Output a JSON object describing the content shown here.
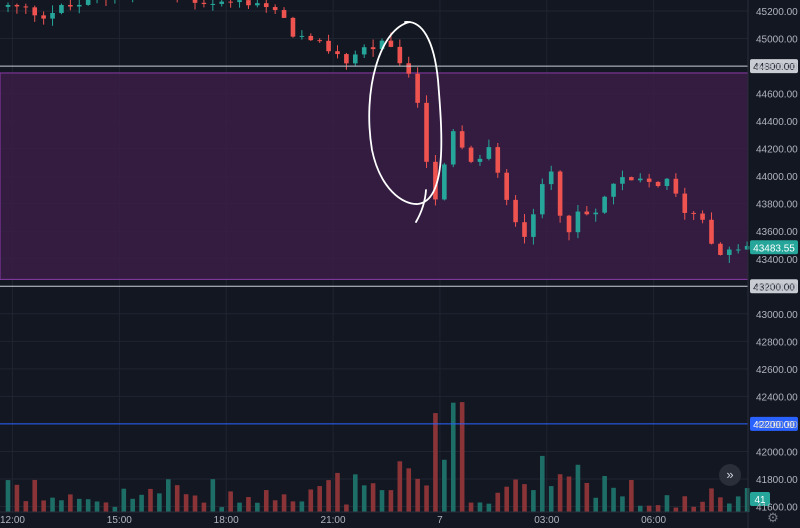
{
  "colors": {
    "background": "#131722",
    "grid": "#1f2431",
    "up": "#26a69a",
    "down": "#ef5350",
    "volume_up": "#1e6e68",
    "volume_down": "#8a3438",
    "zone_fill": "#3a1d45",
    "zone_border": "#8a3aa8",
    "level_line": "#c9ccd3",
    "blue_line": "#2962ff",
    "axis_text": "#b2b5be",
    "annotation": "#ffffff"
  },
  "ui": {
    "expand_icon": "chevrons-right-icon",
    "settings_icon": "gear-icon"
  },
  "chart_data": {
    "type": "candlestick",
    "title": "",
    "ylim": [
      41560,
      45280
    ],
    "y_ticks": [
      "45200.00",
      "45000.00",
      "44800.00",
      "44600.00",
      "44400.00",
      "44200.00",
      "44000.00",
      "43800.00",
      "43600.00",
      "43400.00",
      "43200.00",
      "43000.00",
      "42800.00",
      "42600.00",
      "42400.00",
      "42200.00",
      "42000.00",
      "41800.00",
      "41600.00"
    ],
    "x_tick_labels": [
      "12:00",
      "15:00",
      "18:00",
      "21:00",
      "7",
      "03:00",
      "06:00"
    ],
    "x_tick_hours": [
      0,
      3,
      6,
      9,
      12,
      15,
      18
    ],
    "x_range_hours": [
      -0.35,
      20.65
    ],
    "grid": true,
    "horizontal_levels": [
      {
        "label": "44800.00",
        "value": 44800,
        "style": "white"
      },
      {
        "label": "43200.00",
        "value": 43200,
        "style": "white"
      },
      {
        "label": "42200.00",
        "value": 42200,
        "style": "blue"
      }
    ],
    "zone": {
      "from": 43250,
      "to": 44750
    },
    "last_price": {
      "label": "43483.55",
      "value": 43483.55
    },
    "volume_label": "41",
    "price_path": [
      [
        0.0,
        45230
      ],
      [
        1.0,
        45180
      ],
      [
        2.0,
        45250
      ],
      [
        3.0,
        45320
      ],
      [
        4.0,
        45320
      ],
      [
        5.0,
        45290
      ],
      [
        6.0,
        45260
      ],
      [
        7.0,
        45270
      ],
      [
        7.5,
        45180
      ],
      [
        8.0,
        45050
      ],
      [
        8.5,
        44950
      ],
      [
        9.0,
        44930
      ],
      [
        9.5,
        44840
      ],
      [
        10.0,
        44930
      ],
      [
        10.5,
        44950
      ],
      [
        11.0,
        44850
      ],
      [
        11.5,
        44550
      ],
      [
        11.7,
        44200
      ],
      [
        12.0,
        43850
      ],
      [
        12.2,
        44000
      ],
      [
        12.5,
        44300
      ],
      [
        13.0,
        44080
      ],
      [
        13.5,
        44200
      ],
      [
        14.0,
        43800
      ],
      [
        14.5,
        43600
      ],
      [
        15.0,
        43900
      ],
      [
        15.3,
        44060
      ],
      [
        15.6,
        43600
      ],
      [
        16.0,
        43700
      ],
      [
        16.5,
        43720
      ],
      [
        17.0,
        43950
      ],
      [
        17.5,
        43950
      ],
      [
        18.0,
        43950
      ],
      [
        18.5,
        43950
      ],
      [
        19.0,
        43760
      ],
      [
        19.5,
        43700
      ],
      [
        20.0,
        43400
      ],
      [
        20.3,
        43450
      ],
      [
        20.5,
        43480
      ]
    ]
  }
}
